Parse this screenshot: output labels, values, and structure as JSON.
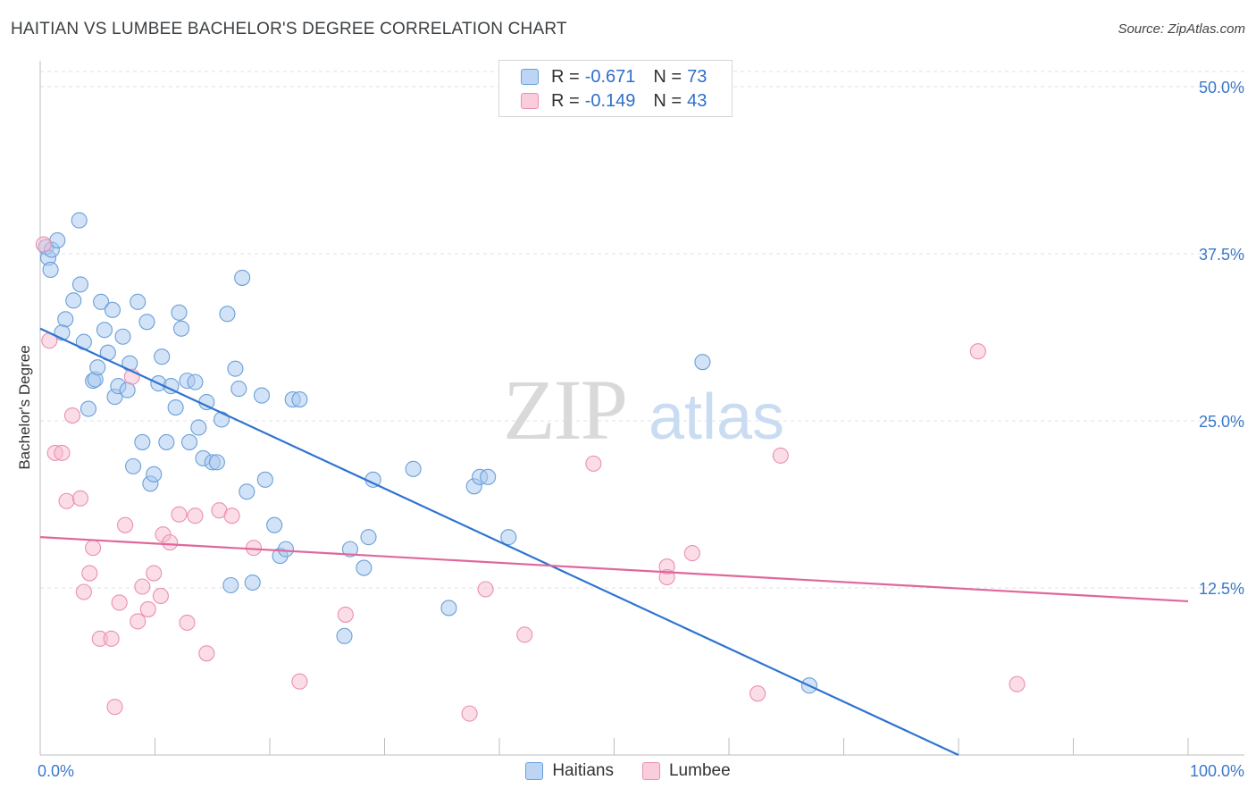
{
  "header": {
    "title": "HAITIAN VS LUMBEE BACHELOR'S DEGREE CORRELATION CHART",
    "source": "Source: ZipAtlas.com"
  },
  "watermark": {
    "zip": "ZIP",
    "atlas": "atlas"
  },
  "legend": {
    "haitians": {
      "r_label": "R = ",
      "r_value": "-0.671",
      "n_label": "N = ",
      "n_value": "73"
    },
    "lumbee": {
      "r_label": "R = ",
      "r_value": "-0.149",
      "n_label": "N = ",
      "n_value": "43"
    }
  },
  "bottom_legend": {
    "haitians": "Haitians",
    "lumbee": "Lumbee"
  },
  "colors": {
    "haitians_fill": "#a8c8f0",
    "haitians_stroke": "#6a9fd8",
    "haitians_line": "#2f74d0",
    "lumbee_fill": "#f7bcd0",
    "lumbee_stroke": "#eb8fb0",
    "lumbee_line": "#e0679a",
    "tick_label": "#3b78cc",
    "grid": "#e1e1e1"
  },
  "chart_data": {
    "type": "scatter",
    "title": "HAITIAN VS LUMBEE BACHELOR'S DEGREE CORRELATION CHART",
    "xlabel": "",
    "ylabel": "Bachelor's Degree",
    "xlim": [
      0,
      100
    ],
    "ylim": [
      0,
      50
    ],
    "x_tick_labels": [
      "0.0%",
      "100.0%"
    ],
    "y_ticks": [
      12.5,
      25.0,
      37.5,
      50.0
    ],
    "y_tick_labels": [
      "12.5%",
      "25.0%",
      "37.5%",
      "50.0%"
    ],
    "grid": true,
    "legend_position": "top-center",
    "series": [
      {
        "name": "Haitians",
        "r": -0.671,
        "n": 73,
        "trend": {
          "x": [
            0,
            80
          ],
          "y": [
            31.9,
            0.0
          ]
        },
        "points": [
          [
            0.5,
            38.0
          ],
          [
            0.7,
            37.2
          ],
          [
            0.9,
            36.3
          ],
          [
            1.0,
            37.8
          ],
          [
            1.5,
            38.5
          ],
          [
            3.4,
            40.0
          ],
          [
            2.2,
            32.6
          ],
          [
            1.9,
            31.6
          ],
          [
            2.9,
            34.0
          ],
          [
            3.5,
            35.2
          ],
          [
            3.8,
            30.9
          ],
          [
            4.2,
            25.9
          ],
          [
            4.6,
            28.0
          ],
          [
            4.8,
            28.1
          ],
          [
            5.0,
            29.0
          ],
          [
            5.3,
            33.9
          ],
          [
            5.6,
            31.8
          ],
          [
            5.9,
            30.1
          ],
          [
            6.3,
            33.3
          ],
          [
            6.5,
            26.8
          ],
          [
            6.8,
            27.6
          ],
          [
            7.2,
            31.3
          ],
          [
            7.6,
            27.3
          ],
          [
            7.8,
            29.3
          ],
          [
            8.1,
            21.6
          ],
          [
            8.5,
            33.9
          ],
          [
            8.9,
            23.4
          ],
          [
            9.3,
            32.4
          ],
          [
            9.6,
            20.3
          ],
          [
            9.9,
            21.0
          ],
          [
            10.3,
            27.8
          ],
          [
            10.6,
            29.8
          ],
          [
            11.0,
            23.4
          ],
          [
            11.4,
            27.6
          ],
          [
            11.8,
            26.0
          ],
          [
            12.1,
            33.1
          ],
          [
            12.3,
            31.9
          ],
          [
            12.8,
            28.0
          ],
          [
            13.0,
            23.4
          ],
          [
            13.5,
            27.9
          ],
          [
            13.8,
            24.5
          ],
          [
            14.2,
            22.2
          ],
          [
            14.5,
            26.4
          ],
          [
            15.0,
            21.9
          ],
          [
            15.4,
            21.9
          ],
          [
            15.8,
            25.1
          ],
          [
            16.3,
            33.0
          ],
          [
            16.6,
            12.7
          ],
          [
            17.0,
            28.9
          ],
          [
            17.3,
            27.4
          ],
          [
            17.6,
            35.7
          ],
          [
            18.0,
            19.7
          ],
          [
            18.5,
            12.9
          ],
          [
            19.3,
            26.9
          ],
          [
            19.6,
            20.6
          ],
          [
            20.4,
            17.2
          ],
          [
            20.9,
            14.9
          ],
          [
            21.4,
            15.4
          ],
          [
            22.0,
            26.6
          ],
          [
            22.6,
            26.6
          ],
          [
            26.5,
            8.9
          ],
          [
            27.0,
            15.4
          ],
          [
            28.2,
            14.0
          ],
          [
            28.6,
            16.3
          ],
          [
            29.0,
            20.6
          ],
          [
            32.5,
            21.4
          ],
          [
            35.6,
            11.0
          ],
          [
            37.8,
            20.1
          ],
          [
            38.3,
            20.8
          ],
          [
            39.0,
            20.8
          ],
          [
            40.8,
            16.3
          ],
          [
            57.7,
            29.4
          ],
          [
            67.0,
            5.2
          ]
        ]
      },
      {
        "name": "Lumbee",
        "r": -0.149,
        "n": 43,
        "trend": {
          "x": [
            0,
            100
          ],
          "y": [
            16.3,
            11.5
          ]
        },
        "points": [
          [
            0.3,
            38.2
          ],
          [
            0.8,
            31.0
          ],
          [
            1.3,
            22.6
          ],
          [
            1.9,
            22.6
          ],
          [
            2.3,
            19.0
          ],
          [
            2.8,
            25.4
          ],
          [
            3.5,
            19.2
          ],
          [
            3.8,
            12.2
          ],
          [
            4.3,
            13.6
          ],
          [
            4.6,
            15.5
          ],
          [
            5.2,
            8.7
          ],
          [
            6.2,
            8.7
          ],
          [
            6.5,
            3.6
          ],
          [
            6.9,
            11.4
          ],
          [
            7.4,
            17.2
          ],
          [
            8.0,
            28.3
          ],
          [
            8.5,
            10.0
          ],
          [
            8.9,
            12.6
          ],
          [
            9.4,
            10.9
          ],
          [
            9.9,
            13.6
          ],
          [
            10.5,
            11.9
          ],
          [
            10.7,
            16.5
          ],
          [
            11.3,
            15.9
          ],
          [
            12.1,
            18.0
          ],
          [
            12.8,
            9.9
          ],
          [
            13.5,
            17.9
          ],
          [
            14.5,
            7.6
          ],
          [
            15.6,
            18.3
          ],
          [
            16.7,
            17.9
          ],
          [
            18.6,
            15.5
          ],
          [
            22.6,
            5.5
          ],
          [
            26.6,
            10.5
          ],
          [
            37.4,
            3.1
          ],
          [
            38.8,
            12.4
          ],
          [
            42.2,
            9.0
          ],
          [
            48.2,
            21.8
          ],
          [
            54.6,
            14.1
          ],
          [
            54.6,
            13.3
          ],
          [
            56.8,
            15.1
          ],
          [
            62.5,
            4.6
          ],
          [
            64.5,
            22.4
          ],
          [
            81.7,
            30.2
          ],
          [
            85.1,
            5.3
          ]
        ]
      }
    ]
  }
}
